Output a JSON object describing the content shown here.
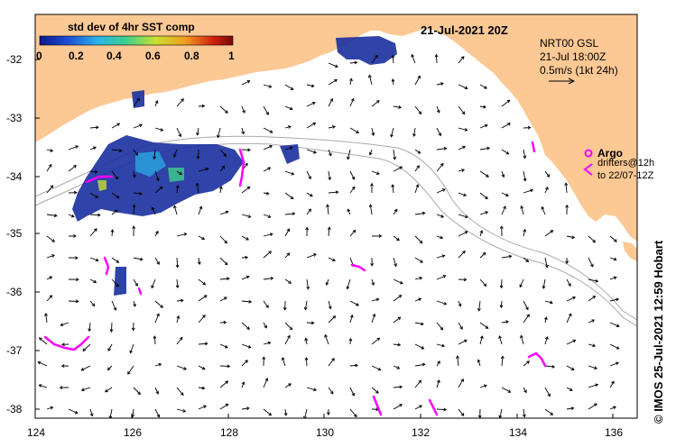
{
  "title": "21-Jul-2021 20Z",
  "colorbar": {
    "label": "std dev of 4hr SST comp",
    "ticks": [
      "0",
      "0.2",
      "0.4",
      "0.6",
      "0.8",
      "1"
    ]
  },
  "current_info": {
    "line1": "NRT00 GSL",
    "line2": "21-Jul 18:00Z",
    "line3": "0.5m/s (1kt 24h)"
  },
  "legend": {
    "argo": "Argo",
    "drifters_line1": "drifters@12h",
    "drifters_line2": "to 22/07-12Z"
  },
  "credit": "© IMOS 25-Jul-2021 12:59 Hobart",
  "x_axis_ticks": [
    "124",
    "126",
    "128",
    "130",
    "132",
    "134",
    "136"
  ],
  "y_axis_ticks": [
    "-32",
    "-33",
    "-34",
    "-35",
    "-36",
    "-37",
    "-38"
  ],
  "colors": {
    "land": "#fcc894",
    "ocean": "#ffffff",
    "drifter": "#ff00ff",
    "sst_low": "#1a2f9e",
    "isobath": "#aaaaaa"
  }
}
